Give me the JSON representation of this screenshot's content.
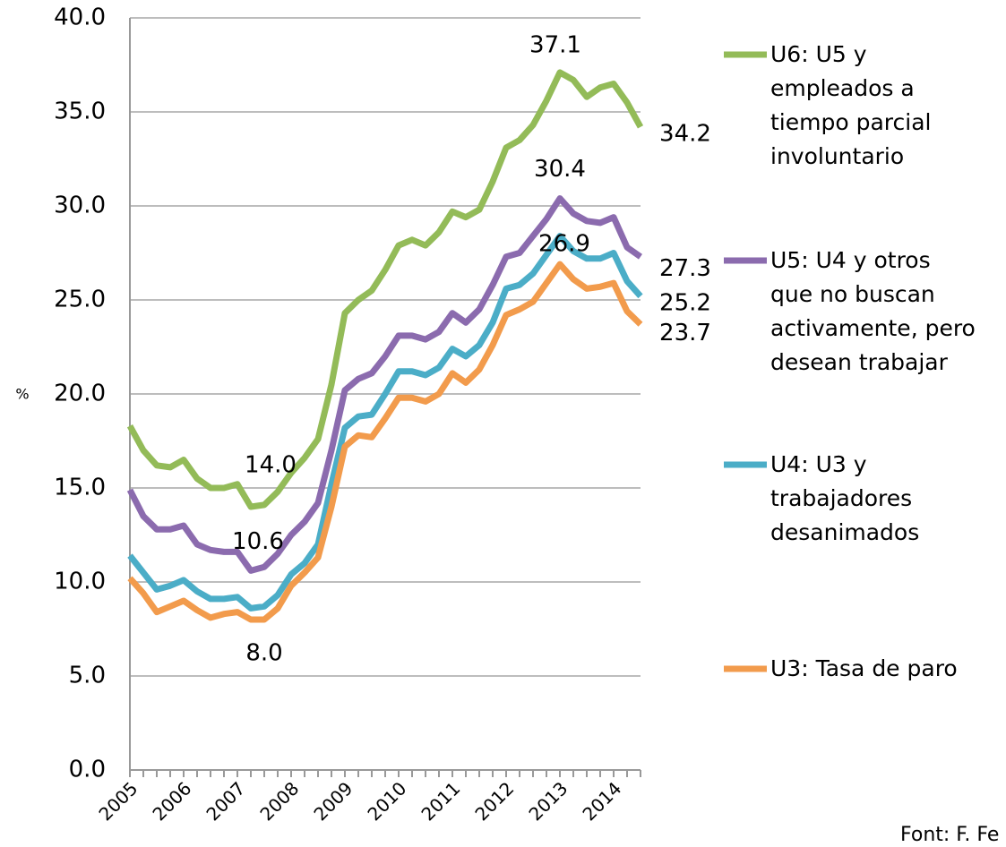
{
  "chart_data": {
    "type": "line",
    "y_label": "%",
    "source": "Font: F. Fe",
    "categories": [
      "2005",
      null,
      null,
      null,
      "2006",
      null,
      null,
      null,
      "2007",
      null,
      null,
      null,
      "2008",
      null,
      null,
      null,
      "2009",
      null,
      null,
      null,
      "2010",
      null,
      null,
      null,
      "2011",
      null,
      null,
      null,
      "2012",
      null,
      null,
      null,
      "2013",
      null,
      null,
      null,
      "2014",
      null,
      null
    ],
    "ylim": [
      0,
      40
    ],
    "yticks": [
      {
        "value": 0,
        "label": "0.0"
      },
      {
        "value": 5,
        "label": "5.0"
      },
      {
        "value": 10,
        "label": "10.0"
      },
      {
        "value": 15,
        "label": "15.0"
      },
      {
        "value": 20,
        "label": "20.0"
      },
      {
        "value": 25,
        "label": "25.0"
      },
      {
        "value": 30,
        "label": "30.0"
      },
      {
        "value": 35,
        "label": "35.0"
      },
      {
        "value": 40,
        "label": "40.0"
      }
    ],
    "grid": true,
    "legend": "right",
    "series": [
      {
        "name": "U6: U5 y\nempleados a\ntiempo parcial\ninvoluntario",
        "color": "#93bb58",
        "values": [
          18.3,
          17.0,
          16.2,
          16.1,
          16.5,
          15.5,
          15.0,
          15.0,
          15.2,
          14.0,
          14.1,
          14.8,
          15.8,
          16.6,
          17.6,
          20.5,
          24.3,
          25.0,
          25.5,
          26.6,
          27.9,
          28.2,
          27.9,
          28.6,
          29.7,
          29.4,
          29.8,
          31.3,
          33.1,
          33.5,
          34.3,
          35.6,
          37.1,
          36.7,
          35.8,
          36.3,
          36.5,
          35.5,
          34.2
        ],
        "value_labels": [
          null,
          null,
          null,
          null,
          null,
          null,
          null,
          null,
          null,
          "14.0",
          null,
          null,
          null,
          null,
          null,
          null,
          null,
          null,
          null,
          null,
          null,
          null,
          null,
          null,
          null,
          null,
          null,
          null,
          null,
          null,
          null,
          null,
          "37.1",
          null,
          null,
          null,
          null,
          null,
          "34.2"
        ]
      },
      {
        "name": "U5: U4 y otros\nque no buscan\nactivamente, pero\ndesean trabajar",
        "color": "#8b6bae",
        "values": [
          14.9,
          13.5,
          12.8,
          12.8,
          13.0,
          12.0,
          11.7,
          11.6,
          11.6,
          10.6,
          10.8,
          11.5,
          12.5,
          13.2,
          14.2,
          17.0,
          20.2,
          20.8,
          21.1,
          22.0,
          23.1,
          23.1,
          22.9,
          23.3,
          24.3,
          23.8,
          24.5,
          25.8,
          27.3,
          27.5,
          28.4,
          29.3,
          30.4,
          29.6,
          29.2,
          29.1,
          29.4,
          27.8,
          27.3
        ],
        "value_labels": [
          null,
          null,
          null,
          null,
          null,
          null,
          null,
          null,
          null,
          "10.6",
          null,
          null,
          null,
          null,
          null,
          null,
          null,
          null,
          null,
          null,
          null,
          null,
          null,
          null,
          null,
          null,
          null,
          null,
          null,
          null,
          null,
          null,
          "30.4",
          null,
          null,
          null,
          null,
          null,
          "27.3"
        ]
      },
      {
        "name": "U4:  U3 y\ntrabajadores\ndesanimados",
        "color": "#4badc7",
        "values": [
          11.4,
          10.5,
          9.6,
          9.8,
          10.1,
          9.5,
          9.1,
          9.1,
          9.2,
          8.6,
          8.7,
          9.3,
          10.4,
          11.0,
          12.0,
          15.2,
          18.2,
          18.8,
          18.9,
          20.0,
          21.2,
          21.2,
          21.0,
          21.4,
          22.4,
          22.0,
          22.6,
          23.8,
          25.6,
          25.8,
          26.4,
          27.4,
          28.4,
          27.6,
          27.2,
          27.2,
          27.5,
          26.0,
          25.2
        ],
        "value_labels": [
          null,
          null,
          null,
          null,
          null,
          null,
          null,
          null,
          null,
          null,
          null,
          null,
          null,
          null,
          null,
          null,
          null,
          null,
          null,
          null,
          null,
          null,
          null,
          null,
          null,
          null,
          null,
          null,
          null,
          null,
          null,
          null,
          null,
          null,
          null,
          null,
          null,
          null,
          "25.2"
        ]
      },
      {
        "name": "U3: Tasa de paro",
        "color": "#f29b4c",
        "values": [
          10.2,
          9.4,
          8.4,
          8.7,
          9.0,
          8.5,
          8.1,
          8.3,
          8.4,
          8.0,
          8.0,
          8.6,
          9.8,
          10.5,
          11.3,
          14.0,
          17.2,
          17.8,
          17.7,
          18.7,
          19.8,
          19.8,
          19.6,
          20.0,
          21.1,
          20.6,
          21.3,
          22.6,
          24.2,
          24.5,
          24.9,
          25.9,
          26.9,
          26.1,
          25.6,
          25.7,
          25.9,
          24.4,
          23.7
        ],
        "value_labels": [
          null,
          null,
          null,
          null,
          null,
          null,
          null,
          null,
          null,
          "8.0",
          null,
          null,
          null,
          null,
          null,
          null,
          null,
          null,
          null,
          null,
          null,
          null,
          null,
          null,
          null,
          null,
          null,
          null,
          null,
          null,
          null,
          null,
          "26.9",
          null,
          null,
          null,
          null,
          null,
          "23.7"
        ]
      }
    ]
  }
}
